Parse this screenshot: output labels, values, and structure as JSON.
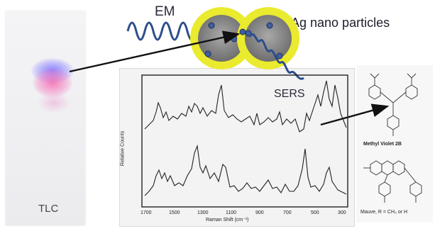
{
  "labels": {
    "em": "EM",
    "ag": "Ag nano particles",
    "sers": "SERS",
    "tlc": "TLC",
    "methyl_violet": "Methyl Violet 2B",
    "mauve": "Mauve, R = CH₃ or H",
    "y_axis": "Relative Counts",
    "x_axis": "Raman Shift (cm⁻¹)",
    "x_ticks": [
      "1700",
      "1500",
      "1300",
      "1100",
      "900",
      "700",
      "500",
      "300"
    ]
  },
  "colors": {
    "em_wave": "#2d4e8c",
    "nanoparticle_core": "#8a8a8a",
    "nanoparticle_halo": "#e6e62a",
    "tlc_spot_blue": "#7a6eff",
    "tlc_spot_pink": "#f05aa8"
  }
}
